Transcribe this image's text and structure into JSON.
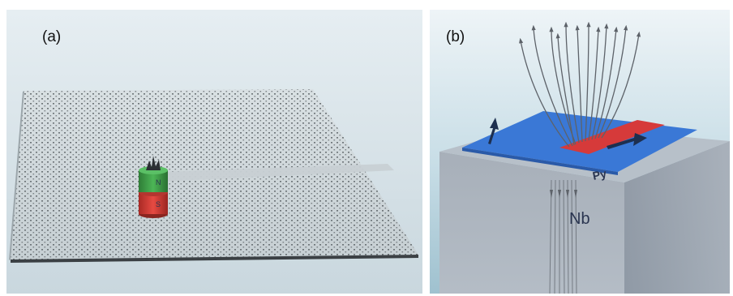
{
  "panel_a": {
    "label": "(a)",
    "magnet_north": "N",
    "magnet_south": "S",
    "colors": {
      "background": "#d8e4ea",
      "plate": "#cfd8dc",
      "magnet_north": "#3fa04a",
      "magnet_south": "#d63a35"
    }
  },
  "panel_b": {
    "label": "(b)",
    "film_label": "Py",
    "substrate_label": "Nb",
    "stripe_label": "",
    "colors": {
      "sky_top": "#eaf2f6",
      "sky_bottom": "#a8cbd8",
      "film": "#3a78d6",
      "stripe": "#d63a3a",
      "block": "#9fa7b3"
    }
  }
}
